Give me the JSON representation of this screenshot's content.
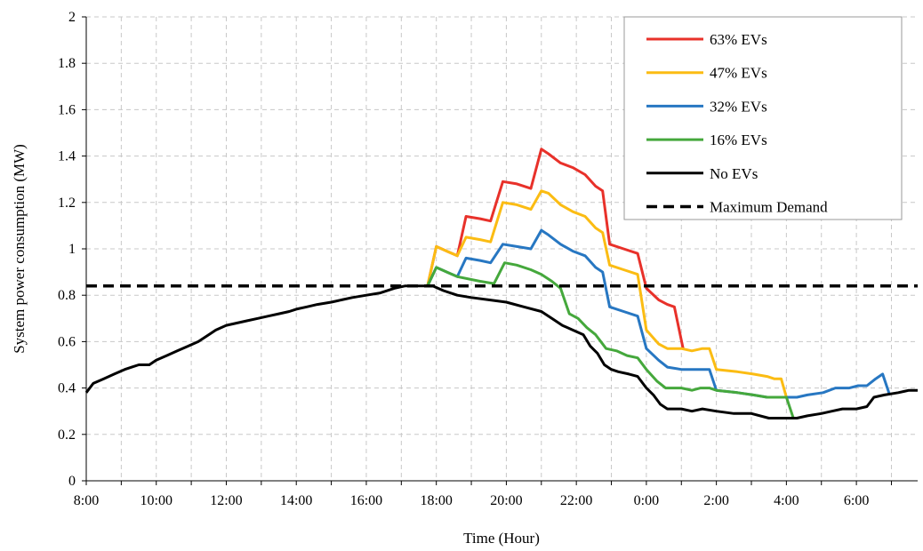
{
  "chart_data": {
    "type": "line",
    "xlabel": "Time (Hour)",
    "ylabel": "System power consumption  (MW)",
    "ylim": [
      0,
      2
    ],
    "yticks": [
      "0",
      "0.2",
      "0.4",
      "0.6",
      "0.8",
      "1",
      "1.2",
      "1.4",
      "1.6",
      "1.8",
      "2"
    ],
    "xlim": [
      8,
      31.75
    ],
    "xticks": [
      {
        "value": 8,
        "label": "8:00"
      },
      {
        "value": 10,
        "label": "10:00"
      },
      {
        "value": 12,
        "label": "12:00"
      },
      {
        "value": 14,
        "label": "14:00"
      },
      {
        "value": 16,
        "label": "16:00"
      },
      {
        "value": 18,
        "label": "18:00"
      },
      {
        "value": 20,
        "label": "20:00"
      },
      {
        "value": 22,
        "label": "22:00"
      },
      {
        "value": 24,
        "label": "0:00"
      },
      {
        "value": 26,
        "label": "2:00"
      },
      {
        "value": 28,
        "label": "4:00"
      },
      {
        "value": 30,
        "label": "6:00"
      }
    ],
    "grid": true,
    "legend_position": "top-right",
    "series": [
      {
        "name": "63% EVs",
        "color": "#e8312a",
        "style": "solid",
        "points": [
          [
            17.75,
            0.84
          ],
          [
            18,
            1.01
          ],
          [
            18.3,
            0.99
          ],
          [
            18.6,
            0.97
          ],
          [
            18.85,
            1.14
          ],
          [
            19.25,
            1.13
          ],
          [
            19.55,
            1.12
          ],
          [
            19.9,
            1.29
          ],
          [
            20.3,
            1.28
          ],
          [
            20.7,
            1.26
          ],
          [
            21,
            1.43
          ],
          [
            21.2,
            1.41
          ],
          [
            21.55,
            1.37
          ],
          [
            21.9,
            1.35
          ],
          [
            22.25,
            1.32
          ],
          [
            22.55,
            1.27
          ],
          [
            22.75,
            1.25
          ],
          [
            22.95,
            1.02
          ],
          [
            23.35,
            1.0
          ],
          [
            23.75,
            0.98
          ],
          [
            24,
            0.83
          ],
          [
            24.35,
            0.78
          ],
          [
            24.6,
            0.76
          ],
          [
            24.8,
            0.75
          ],
          [
            25.05,
            0.57
          ]
        ]
      },
      {
        "name": "47% EVs",
        "color": "#fbbc13",
        "style": "solid",
        "points": [
          [
            17.75,
            0.84
          ],
          [
            18,
            1.01
          ],
          [
            18.3,
            0.99
          ],
          [
            18.6,
            0.97
          ],
          [
            18.85,
            1.05
          ],
          [
            19.25,
            1.04
          ],
          [
            19.55,
            1.03
          ],
          [
            19.9,
            1.2
          ],
          [
            20.3,
            1.19
          ],
          [
            20.7,
            1.17
          ],
          [
            21,
            1.25
          ],
          [
            21.2,
            1.24
          ],
          [
            21.55,
            1.19
          ],
          [
            21.9,
            1.16
          ],
          [
            22.25,
            1.14
          ],
          [
            22.55,
            1.09
          ],
          [
            22.75,
            1.07
          ],
          [
            22.95,
            0.93
          ],
          [
            23.35,
            0.91
          ],
          [
            23.75,
            0.89
          ],
          [
            24,
            0.65
          ],
          [
            24.35,
            0.59
          ],
          [
            24.6,
            0.57
          ],
          [
            25,
            0.57
          ],
          [
            25.3,
            0.56
          ],
          [
            25.6,
            0.57
          ],
          [
            25.8,
            0.57
          ],
          [
            26,
            0.48
          ],
          [
            26.6,
            0.47
          ],
          [
            27.05,
            0.46
          ],
          [
            27.45,
            0.45
          ],
          [
            27.65,
            0.44
          ],
          [
            27.85,
            0.44
          ],
          [
            28,
            0.36
          ]
        ]
      },
      {
        "name": "32% EVs",
        "color": "#2777c2",
        "style": "solid",
        "points": [
          [
            17.75,
            0.84
          ],
          [
            18,
            0.92
          ],
          [
            18.3,
            0.9
          ],
          [
            18.6,
            0.88
          ],
          [
            18.85,
            0.96
          ],
          [
            19.25,
            0.95
          ],
          [
            19.55,
            0.94
          ],
          [
            19.9,
            1.02
          ],
          [
            20.3,
            1.01
          ],
          [
            20.7,
            1.0
          ],
          [
            21,
            1.08
          ],
          [
            21.2,
            1.06
          ],
          [
            21.55,
            1.02
          ],
          [
            21.9,
            0.99
          ],
          [
            22.25,
            0.97
          ],
          [
            22.55,
            0.92
          ],
          [
            22.75,
            0.9
          ],
          [
            22.95,
            0.75
          ],
          [
            23.35,
            0.73
          ],
          [
            23.75,
            0.71
          ],
          [
            24,
            0.57
          ],
          [
            24.35,
            0.52
          ],
          [
            24.6,
            0.49
          ],
          [
            25,
            0.48
          ],
          [
            25.3,
            0.48
          ],
          [
            25.55,
            0.48
          ],
          [
            25.8,
            0.48
          ],
          [
            26,
            0.39
          ],
          [
            26.6,
            0.38
          ],
          [
            27.05,
            0.37
          ],
          [
            27.45,
            0.36
          ],
          [
            27.85,
            0.36
          ],
          [
            28.3,
            0.36
          ],
          [
            28.6,
            0.37
          ],
          [
            29.05,
            0.38
          ],
          [
            29.4,
            0.4
          ],
          [
            29.8,
            0.4
          ],
          [
            30.05,
            0.41
          ],
          [
            30.3,
            0.41
          ],
          [
            30.55,
            0.44
          ],
          [
            30.75,
            0.46
          ],
          [
            30.95,
            0.37
          ]
        ]
      },
      {
        "name": "16% EVs",
        "color": "#45a83c",
        "style": "solid",
        "points": [
          [
            17.75,
            0.84
          ],
          [
            18,
            0.92
          ],
          [
            18.3,
            0.9
          ],
          [
            18.6,
            0.88
          ],
          [
            19.25,
            0.86
          ],
          [
            19.65,
            0.85
          ],
          [
            19.95,
            0.94
          ],
          [
            20.3,
            0.93
          ],
          [
            20.7,
            0.91
          ],
          [
            21,
            0.89
          ],
          [
            21.3,
            0.86
          ],
          [
            21.55,
            0.83
          ],
          [
            21.8,
            0.72
          ],
          [
            22.05,
            0.7
          ],
          [
            22.3,
            0.66
          ],
          [
            22.55,
            0.63
          ],
          [
            22.85,
            0.57
          ],
          [
            23.15,
            0.56
          ],
          [
            23.45,
            0.54
          ],
          [
            23.75,
            0.53
          ],
          [
            24,
            0.48
          ],
          [
            24.3,
            0.43
          ],
          [
            24.55,
            0.4
          ],
          [
            25,
            0.4
          ],
          [
            25.3,
            0.39
          ],
          [
            25.55,
            0.4
          ],
          [
            25.8,
            0.4
          ],
          [
            26,
            0.39
          ],
          [
            26.6,
            0.38
          ],
          [
            27.05,
            0.37
          ],
          [
            27.45,
            0.36
          ],
          [
            27.85,
            0.36
          ],
          [
            28,
            0.36
          ],
          [
            28.2,
            0.27
          ]
        ]
      },
      {
        "name": "No EVs",
        "color": "#000000",
        "style": "solid",
        "points": [
          [
            8,
            0.38
          ],
          [
            8.2,
            0.42
          ],
          [
            8.5,
            0.44
          ],
          [
            8.8,
            0.46
          ],
          [
            9.1,
            0.48
          ],
          [
            9.3,
            0.49
          ],
          [
            9.5,
            0.5
          ],
          [
            9.8,
            0.5
          ],
          [
            10,
            0.52
          ],
          [
            10.3,
            0.54
          ],
          [
            10.6,
            0.56
          ],
          [
            10.9,
            0.58
          ],
          [
            11.2,
            0.6
          ],
          [
            11.5,
            0.63
          ],
          [
            11.7,
            0.65
          ],
          [
            12,
            0.67
          ],
          [
            12.3,
            0.68
          ],
          [
            12.6,
            0.69
          ],
          [
            12.9,
            0.7
          ],
          [
            13.2,
            0.71
          ],
          [
            13.5,
            0.72
          ],
          [
            13.8,
            0.73
          ],
          [
            14,
            0.74
          ],
          [
            14.3,
            0.75
          ],
          [
            14.6,
            0.76
          ],
          [
            15,
            0.77
          ],
          [
            15.3,
            0.78
          ],
          [
            15.6,
            0.79
          ],
          [
            16,
            0.8
          ],
          [
            16.4,
            0.81
          ],
          [
            16.8,
            0.83
          ],
          [
            17.1,
            0.84
          ],
          [
            17.5,
            0.84
          ],
          [
            17.9,
            0.84
          ],
          [
            18.2,
            0.82
          ],
          [
            18.6,
            0.8
          ],
          [
            19,
            0.79
          ],
          [
            19.5,
            0.78
          ],
          [
            20,
            0.77
          ],
          [
            20.5,
            0.75
          ],
          [
            21,
            0.73
          ],
          [
            21.3,
            0.7
          ],
          [
            21.6,
            0.67
          ],
          [
            21.9,
            0.65
          ],
          [
            22.2,
            0.63
          ],
          [
            22.4,
            0.58
          ],
          [
            22.6,
            0.55
          ],
          [
            22.8,
            0.5
          ],
          [
            23,
            0.48
          ],
          [
            23.2,
            0.47
          ],
          [
            23.5,
            0.46
          ],
          [
            23.75,
            0.45
          ],
          [
            24,
            0.4
          ],
          [
            24.2,
            0.37
          ],
          [
            24.4,
            0.33
          ],
          [
            24.6,
            0.31
          ],
          [
            25,
            0.31
          ],
          [
            25.3,
            0.3
          ],
          [
            25.6,
            0.31
          ],
          [
            26,
            0.3
          ],
          [
            26.5,
            0.29
          ],
          [
            27,
            0.29
          ],
          [
            27.5,
            0.27
          ],
          [
            28,
            0.27
          ],
          [
            28.3,
            0.27
          ],
          [
            28.6,
            0.28
          ],
          [
            29,
            0.29
          ],
          [
            29.3,
            0.3
          ],
          [
            29.6,
            0.31
          ],
          [
            30,
            0.31
          ],
          [
            30.3,
            0.32
          ],
          [
            30.5,
            0.36
          ],
          [
            30.8,
            0.37
          ],
          [
            31.2,
            0.38
          ],
          [
            31.5,
            0.39
          ],
          [
            31.75,
            0.39
          ]
        ]
      },
      {
        "name": "Maximum Demand",
        "color": "#000000",
        "style": "dashed",
        "points": [
          [
            8,
            0.84
          ],
          [
            31.75,
            0.84
          ]
        ]
      }
    ]
  }
}
